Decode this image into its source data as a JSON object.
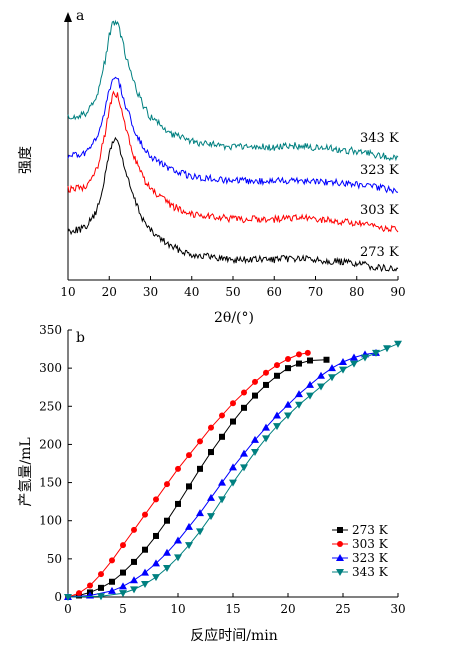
{
  "chart_data": [
    {
      "panel_label": "a",
      "type": "line",
      "xlabel": "2θ/(°)",
      "ylabel": "强度",
      "xlim": [
        10,
        90
      ],
      "xticks": [
        10,
        20,
        30,
        40,
        50,
        60,
        70,
        80,
        90
      ],
      "yticks_shown": false,
      "grid": false,
      "series": [
        {
          "name": "273 K",
          "color": "#000000",
          "x": [
            10,
            14,
            17,
            19,
            20,
            21,
            22,
            23,
            24,
            26,
            28,
            30,
            35,
            40,
            50,
            60,
            65,
            70,
            80,
            85,
            90
          ],
          "y": [
            0.3,
            0.32,
            0.45,
            0.72,
            0.9,
            1.0,
            1.0,
            0.88,
            0.75,
            0.55,
            0.4,
            0.3,
            0.18,
            0.12,
            0.08,
            0.08,
            0.09,
            0.08,
            0.05,
            0.02,
            0.0
          ]
        },
        {
          "name": "303 K",
          "color": "#ff0000",
          "x": [
            10,
            14,
            17,
            19,
            20,
            21,
            22,
            23,
            24,
            26,
            28,
            30,
            35,
            40,
            50,
            60,
            65,
            70,
            80,
            85,
            90
          ],
          "y": [
            0.3,
            0.32,
            0.45,
            0.72,
            0.9,
            1.0,
            1.0,
            0.88,
            0.75,
            0.55,
            0.4,
            0.3,
            0.18,
            0.12,
            0.08,
            0.08,
            0.09,
            0.08,
            0.05,
            0.02,
            0.0
          ]
        },
        {
          "name": "323 K",
          "color": "#0000ff",
          "x": [
            10,
            14,
            17,
            19,
            20,
            21,
            22,
            23,
            24,
            26,
            28,
            30,
            35,
            40,
            50,
            60,
            65,
            70,
            80,
            85,
            90
          ],
          "y": [
            0.3,
            0.32,
            0.45,
            0.72,
            0.9,
            1.0,
            1.0,
            0.88,
            0.75,
            0.55,
            0.4,
            0.3,
            0.18,
            0.12,
            0.08,
            0.08,
            0.09,
            0.08,
            0.05,
            0.02,
            0.0
          ]
        },
        {
          "name": "343 K",
          "color": "#008080",
          "x": [
            10,
            14,
            17,
            19,
            20,
            21,
            22,
            23,
            24,
            26,
            28,
            30,
            35,
            40,
            50,
            60,
            65,
            70,
            80,
            85,
            90
          ],
          "y": [
            0.3,
            0.32,
            0.45,
            0.72,
            0.9,
            1.0,
            1.0,
            0.88,
            0.75,
            0.55,
            0.4,
            0.3,
            0.18,
            0.12,
            0.08,
            0.08,
            0.09,
            0.08,
            0.05,
            0.02,
            0.0
          ]
        }
      ]
    },
    {
      "panel_label": "b",
      "type": "scatter",
      "xlabel": "反应时间/min",
      "ylabel": "产氢量/mL",
      "xlim": [
        0,
        30
      ],
      "ylim": [
        0,
        350
      ],
      "xticks": [
        0,
        5,
        10,
        15,
        20,
        25,
        30
      ],
      "yticks": [
        0,
        50,
        100,
        150,
        200,
        250,
        300,
        350
      ],
      "grid": false,
      "legend_position": "bottom-right",
      "series": [
        {
          "name": "273 K",
          "color": "#000000",
          "marker": "square",
          "x": [
            0,
            1,
            2,
            3,
            4,
            5,
            6,
            7,
            8,
            9,
            10,
            11,
            12,
            13,
            14,
            15,
            16,
            17,
            18,
            19,
            20,
            21,
            22,
            23.5
          ],
          "y": [
            0,
            2,
            6,
            12,
            20,
            32,
            46,
            62,
            80,
            100,
            122,
            145,
            168,
            190,
            210,
            230,
            248,
            264,
            278,
            290,
            300,
            306,
            310,
            311
          ]
        },
        {
          "name": "303 K",
          "color": "#ff0000",
          "marker": "circle",
          "x": [
            0,
            1,
            2,
            3,
            4,
            5,
            6,
            7,
            8,
            9,
            10,
            11,
            12,
            13,
            14,
            15,
            16,
            17,
            18,
            19,
            20,
            21,
            21.8
          ],
          "y": [
            0,
            5,
            15,
            30,
            48,
            68,
            88,
            108,
            128,
            148,
            168,
            186,
            204,
            222,
            238,
            254,
            268,
            282,
            294,
            304,
            312,
            318,
            320
          ]
        },
        {
          "name": "323 K",
          "color": "#0000ff",
          "marker": "triangle-up",
          "x": [
            0,
            2,
            4,
            5,
            6,
            7,
            8,
            9,
            10,
            11,
            12,
            13,
            14,
            15,
            16,
            17,
            18,
            19,
            20,
            21,
            22,
            23,
            24,
            25,
            26,
            27,
            28
          ],
          "y": [
            0,
            2,
            8,
            14,
            22,
            32,
            44,
            58,
            74,
            92,
            110,
            130,
            150,
            170,
            188,
            206,
            222,
            238,
            252,
            266,
            278,
            290,
            300,
            308,
            314,
            318,
            320
          ]
        },
        {
          "name": "343 K",
          "color": "#008080",
          "marker": "triangle-down",
          "x": [
            0,
            3,
            5,
            6,
            7,
            8,
            9,
            10,
            11,
            12,
            13,
            14,
            15,
            16,
            17,
            18,
            19,
            20,
            21,
            22,
            23,
            24,
            25,
            26,
            27,
            28,
            29,
            30
          ],
          "y": [
            0,
            1,
            5,
            10,
            17,
            26,
            38,
            52,
            68,
            86,
            106,
            128,
            150,
            170,
            190,
            208,
            224,
            238,
            252,
            264,
            276,
            288,
            298,
            306,
            314,
            320,
            326,
            332
          ]
        }
      ]
    }
  ]
}
